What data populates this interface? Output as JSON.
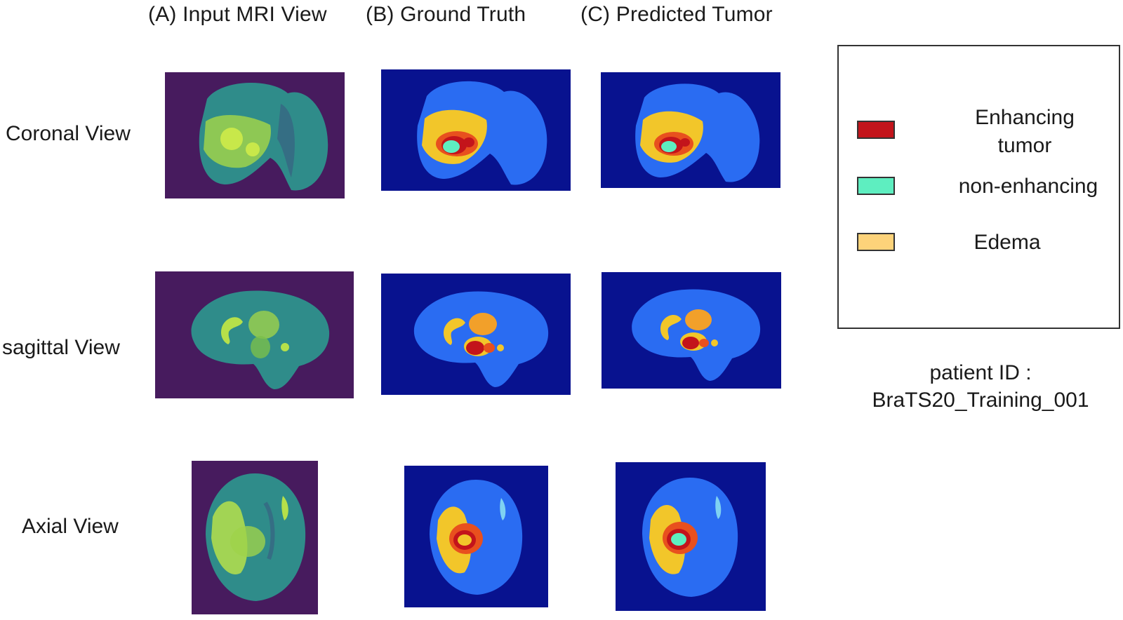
{
  "columns": {
    "a": "(A) Input MRI View",
    "b": "(B) Ground Truth",
    "c": "(C) Predicted Tumor"
  },
  "rows": {
    "coronal": "Coronal View",
    "sagittal": "sagittal View",
    "axial": "Axial View"
  },
  "legend": {
    "enhancing_line1": "Enhancing",
    "enhancing_line2": "tumor",
    "non_enhancing": "non-enhancing",
    "edema": "Edema",
    "colors": {
      "enhancing": "#c3141b",
      "non_enhancing": "#5eeec0",
      "edema": "#fdd37a"
    }
  },
  "patient": {
    "label": "patient ID :",
    "id": "BraTS20_Training_001"
  },
  "palette": {
    "mri_background": "#471b5e",
    "mri_brain": "#2f8c8a",
    "mri_bright": "#b6e04a",
    "seg_background": "#08128f",
    "seg_brain": "#2a6cf2",
    "seg_edema": "#f2c62a",
    "seg_core": "#e8501e",
    "seg_enhancing": "#c3141b",
    "seg_nonenh": "#5eeec0"
  }
}
